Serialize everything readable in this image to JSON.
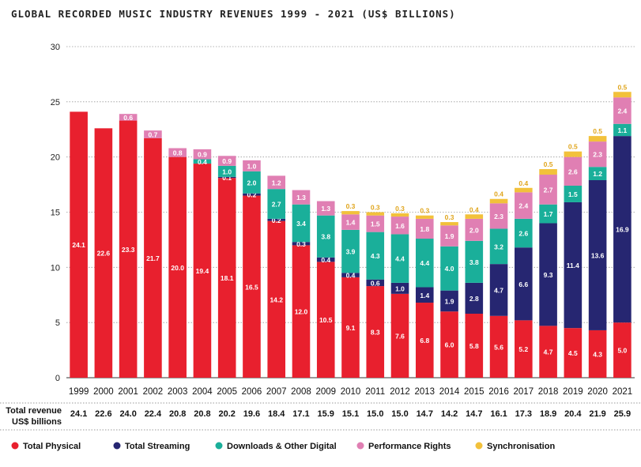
{
  "chart_data": {
    "type": "bar",
    "stacked": true,
    "title": "GLOBAL RECORDED MUSIC INDUSTRY REVENUES 1999 - 2021 (US$ BILLIONS)",
    "xlabel": "",
    "ylabel": "",
    "ylim": [
      0,
      30
    ],
    "yticks": [
      "0",
      "5",
      "10",
      "15",
      "20",
      "25",
      "30"
    ],
    "grid": true,
    "legend_position": "bottom",
    "categories": [
      "1999",
      "2000",
      "2001",
      "2002",
      "2003",
      "2004",
      "2005",
      "2006",
      "2007",
      "2008",
      "2009",
      "2010",
      "2011",
      "2012",
      "2013",
      "2014",
      "2015",
      "2016",
      "2017",
      "2018",
      "2019",
      "2020",
      "2021"
    ],
    "series": [
      {
        "name": "Total Physical",
        "color": "#e8202e",
        "values": [
          24.1,
          22.6,
          23.3,
          21.7,
          20.0,
          19.4,
          18.1,
          16.5,
          14.2,
          12.0,
          10.5,
          9.1,
          8.3,
          7.6,
          6.8,
          6.0,
          5.8,
          5.6,
          5.2,
          4.7,
          4.5,
          4.3,
          5.0
        ],
        "labels": [
          "24.1",
          "22.6",
          "23.3",
          "21.7",
          "20.0",
          "19.4",
          "18.1",
          "16.5",
          "14.2",
          "12.0",
          "10.5",
          "9.1",
          "8.3",
          "7.6",
          "6.8",
          "6.0",
          "5.8",
          "5.6",
          "5.2",
          "4.7",
          "4.5",
          "4.3",
          "5.0"
        ]
      },
      {
        "name": "Total Streaming",
        "color": "#262671",
        "values": [
          null,
          null,
          null,
          null,
          null,
          null,
          0.1,
          0.2,
          0.2,
          0.3,
          0.4,
          0.4,
          0.6,
          1.0,
          1.4,
          1.9,
          2.8,
          4.7,
          6.6,
          9.3,
          11.4,
          13.6,
          16.9
        ],
        "labels": [
          "",
          "",
          "",
          "",
          "",
          "",
          "0.1",
          "0.2",
          "0.2",
          "0.3",
          "0.4",
          "0.4",
          "0.6",
          "1.0",
          "1.4",
          "1.9",
          "2.8",
          "4.7",
          "6.6",
          "9.3",
          "11.4",
          "13.6",
          "16.9"
        ]
      },
      {
        "name": "Downloads & Other Digital",
        "color": "#1aaf9a",
        "values": [
          null,
          null,
          null,
          null,
          null,
          0.4,
          1.0,
          2.0,
          2.7,
          3.4,
          3.8,
          3.9,
          4.3,
          4.4,
          4.4,
          4.0,
          3.8,
          3.2,
          2.6,
          1.7,
          1.5,
          1.2,
          1.1
        ],
        "labels": [
          "",
          "",
          "",
          "",
          "",
          "0.4",
          "1.0",
          "2.0",
          "2.7",
          "3.4",
          "3.8",
          "3.9",
          "4.3",
          "4.4",
          "4.4",
          "4.0",
          "3.8",
          "3.2",
          "2.6",
          "1.7",
          "1.5",
          "1.2",
          "1.1"
        ]
      },
      {
        "name": "Performance Rights",
        "color": "#e07fb3",
        "values": [
          null,
          null,
          0.6,
          0.7,
          0.8,
          0.9,
          0.9,
          1.0,
          1.2,
          1.3,
          1.3,
          1.4,
          1.5,
          1.6,
          1.8,
          1.9,
          2.0,
          2.3,
          2.4,
          2.7,
          2.6,
          2.3,
          2.4
        ],
        "labels": [
          "",
          "",
          "0.6",
          "0.7",
          "0.8",
          "0.9",
          "0.9",
          "1.0",
          "1.2",
          "1.3",
          "1.3",
          "1.4",
          "1.5",
          "1.6",
          "1.8",
          "1.9",
          "2.0",
          "2.3",
          "2.4",
          "2.7",
          "2.6",
          "2.3",
          "2.4"
        ]
      },
      {
        "name": "Synchronisation",
        "color": "#f2c13b",
        "values": [
          null,
          null,
          null,
          null,
          null,
          null,
          null,
          null,
          null,
          null,
          null,
          0.3,
          0.3,
          0.3,
          0.3,
          0.3,
          0.4,
          0.4,
          0.4,
          0.5,
          0.5,
          0.5,
          0.5
        ],
        "labels": [
          "",
          "",
          "",
          "",
          "",
          "",
          "",
          "",
          "",
          "",
          "",
          "0.3",
          "0.3",
          "0.3",
          "0.3",
          "0.3",
          "0.4",
          "0.4",
          "0.4",
          "0.5",
          "0.5",
          "0.5",
          "0.5"
        ]
      }
    ],
    "totals_label": "Total revenue US$ billions",
    "totals": [
      "24.1",
      "22.6",
      "24.0",
      "22.4",
      "20.8",
      "20.8",
      "20.2",
      "19.6",
      "18.4",
      "17.1",
      "15.9",
      "15.1",
      "15.0",
      "15.0",
      "14.7",
      "14.2",
      "14.7",
      "16.1",
      "17.3",
      "18.9",
      "20.4",
      "21.9",
      "25.9"
    ]
  }
}
